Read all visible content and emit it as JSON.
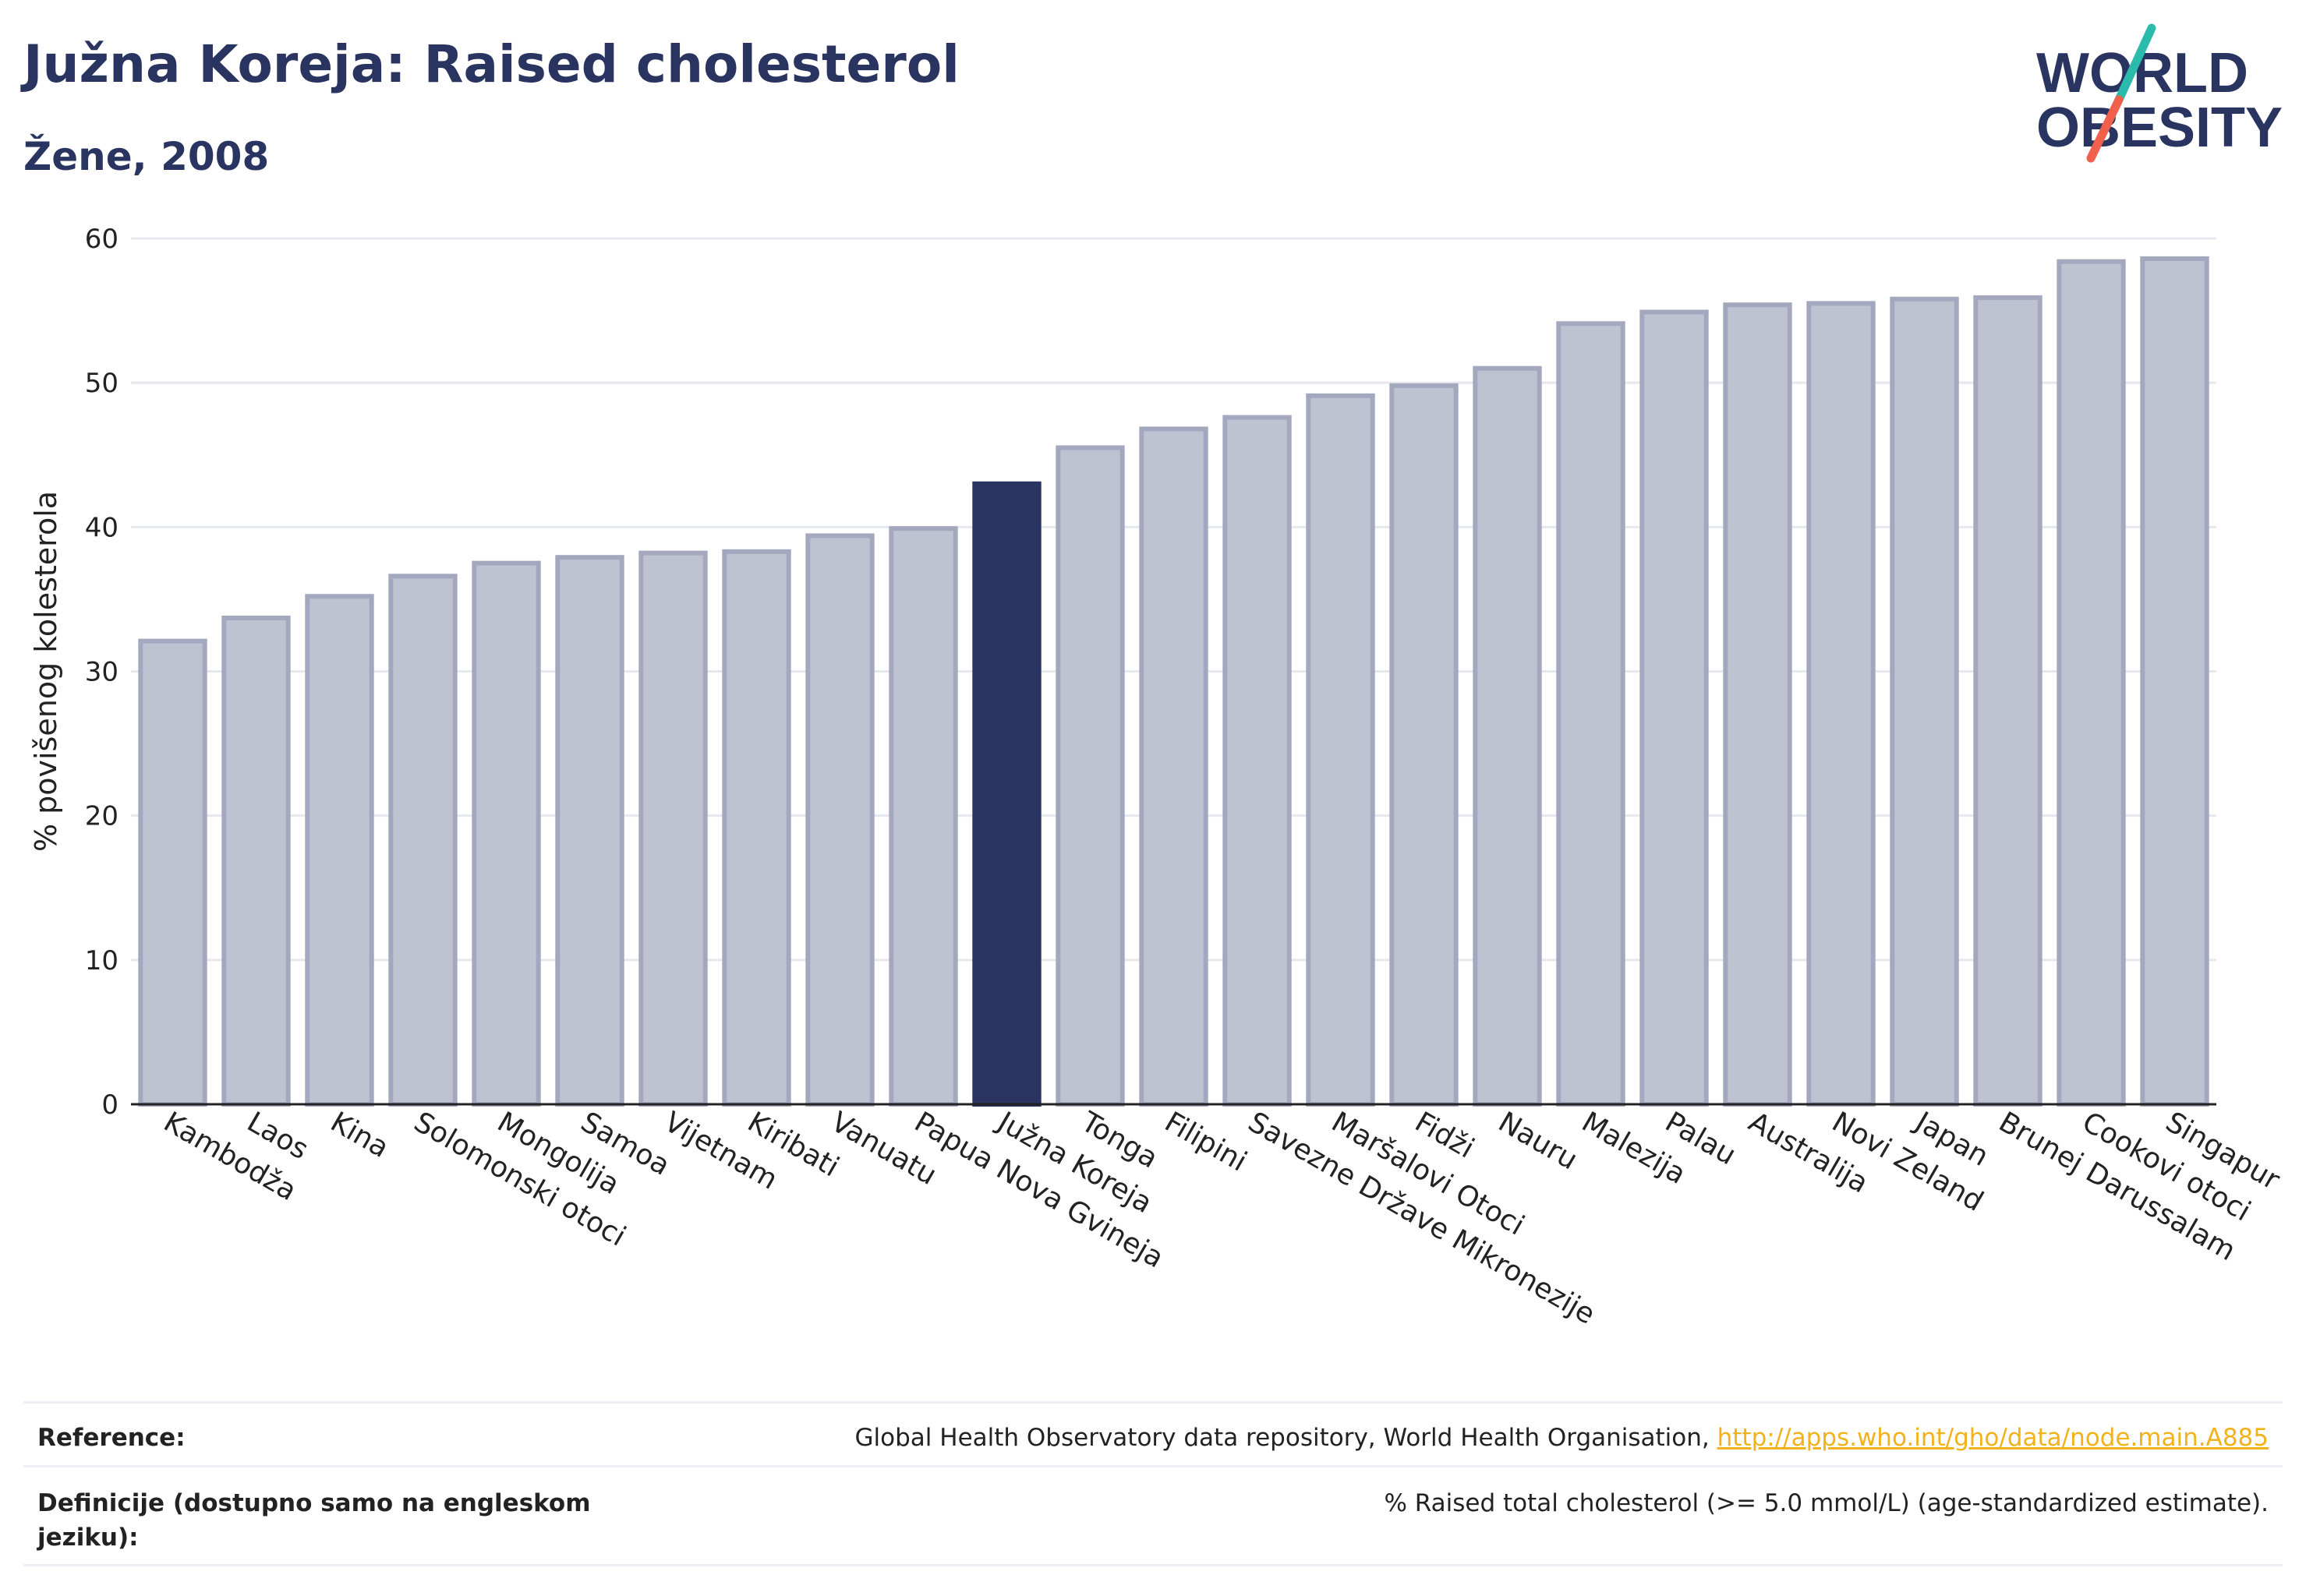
{
  "header": {
    "title": "Južna Koreja: Raised cholesterol",
    "subtitle": "Žene, 2008"
  },
  "logo": {
    "line1": "WORLD",
    "line2": "OBESITY",
    "slash_colors": [
      "#2bbbad",
      "#f0604d"
    ],
    "text_color": "#2a3461"
  },
  "colors": {
    "bar": "#bfc2d0",
    "bar_border": "#a3a8bf",
    "highlight": "#2a3461",
    "grid": "#e6e8ee",
    "axis": "#222222"
  },
  "chart_data": {
    "type": "bar",
    "ylabel": "% povišenog kolesterola",
    "ylim": [
      0,
      60
    ],
    "yticks": [
      0,
      10,
      20,
      30,
      40,
      50,
      60
    ],
    "highlight": "Južna Koreja",
    "grid": true,
    "categories": [
      "Kambodža",
      "Laos",
      "Kina",
      "Solomonski otoci",
      "Mongolija",
      "Samoa",
      "Vijetnam",
      "Kiribati",
      "Vanuatu",
      "Papua Nova Gvineja",
      "Južna Koreja",
      "Tonga",
      "Filipini",
      "Savezne Države Mikronezije",
      "Maršalovi Otoci",
      "Fidži",
      "Nauru",
      "Malezija",
      "Palau",
      "Australija",
      "Novi Zeland",
      "Japan",
      "Brunej Darussalam",
      "Cookovi otoci",
      "Singapur"
    ],
    "values": [
      32.1,
      33.7,
      35.2,
      36.6,
      37.5,
      37.9,
      38.2,
      38.3,
      39.4,
      39.9,
      43.0,
      45.5,
      46.8,
      47.6,
      49.1,
      49.8,
      51.0,
      54.1,
      54.9,
      55.4,
      55.5,
      55.8,
      55.9,
      58.4,
      58.6
    ]
  },
  "reference": {
    "row1": {
      "label": "Reference:",
      "text": "Global Health Observatory data repository, World Health Organisation, ",
      "link": "http://apps.who.int/gho/data/node.main.A885"
    },
    "row2": {
      "label": "Definicije (dostupno samo na engleskom jeziku):",
      "text": "% Raised total cholesterol (>= 5.0 mmol/L) (age-standardized estimate)."
    }
  }
}
